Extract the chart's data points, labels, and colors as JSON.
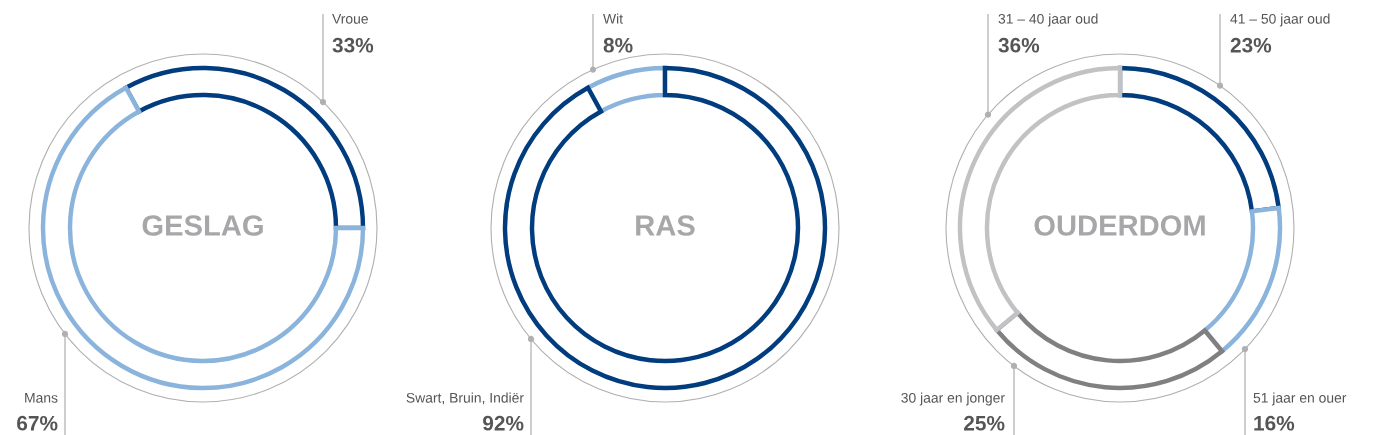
{
  "chart_data": [
    {
      "type": "donut",
      "title": "GESLAG",
      "categories": [
        "Vroue",
        "Mans"
      ],
      "values": [
        33,
        67
      ],
      "value_labels": [
        "33%",
        "67%"
      ],
      "colors": [
        "#003c7e",
        "#8bb4dc"
      ]
    },
    {
      "type": "donut",
      "title": "RAS",
      "categories": [
        "Wit",
        "Swart, Bruin, Indiër"
      ],
      "values": [
        8,
        92
      ],
      "value_labels": [
        "8%",
        "92%"
      ],
      "colors": [
        "#8bb4dc",
        "#003c7e"
      ]
    },
    {
      "type": "donut",
      "title": "OUDERDOM",
      "categories": [
        "41 – 50 jaar oud",
        "51 jaar en ouer",
        "30 jaar en jonger",
        "31 – 40 jaar oud"
      ],
      "values": [
        23,
        16,
        25,
        36
      ],
      "value_labels": [
        "23%",
        "16%",
        "25%",
        "36%"
      ],
      "colors": [
        "#003c7e",
        "#8bb4dc",
        "#808083",
        "#c2c2c4"
      ]
    }
  ]
}
